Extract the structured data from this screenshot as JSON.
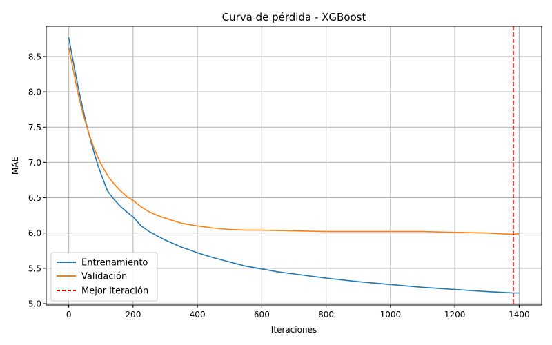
{
  "chart_data": {
    "type": "line",
    "title": "Curva de pérdida - XGBoost",
    "xlabel": "Iteraciones",
    "ylabel": "MAE",
    "xlim": [
      -70,
      1470
    ],
    "ylim": [
      4.98,
      8.93
    ],
    "xticks": [
      0,
      200,
      400,
      600,
      800,
      1000,
      1200,
      1400
    ],
    "yticks": [
      5.0,
      5.5,
      6.0,
      6.5,
      7.0,
      7.5,
      8.0,
      8.5
    ],
    "xtick_labels": [
      "0",
      "200",
      "400",
      "600",
      "800",
      "1000",
      "1200",
      "1400"
    ],
    "ytick_labels": [
      "5.0",
      "5.5",
      "6.0",
      "6.5",
      "7.0",
      "7.5",
      "8.0",
      "8.5"
    ],
    "grid": true,
    "legend_position": "lower-left",
    "series": [
      {
        "name": "Entrenamiento",
        "color": "#1f77b4",
        "x": [
          0,
          10,
          20,
          30,
          40,
          50,
          60,
          70,
          80,
          90,
          100,
          120,
          140,
          160,
          180,
          200,
          225,
          250,
          275,
          300,
          350,
          400,
          450,
          500,
          550,
          600,
          650,
          700,
          800,
          900,
          1000,
          1100,
          1200,
          1300,
          1382,
          1400
        ],
        "y": [
          8.77,
          8.52,
          8.28,
          8.05,
          7.84,
          7.64,
          7.45,
          7.28,
          7.12,
          6.97,
          6.84,
          6.6,
          6.48,
          6.38,
          6.3,
          6.23,
          6.1,
          6.02,
          5.96,
          5.9,
          5.8,
          5.72,
          5.65,
          5.59,
          5.53,
          5.49,
          5.45,
          5.42,
          5.36,
          5.31,
          5.27,
          5.23,
          5.2,
          5.17,
          5.15,
          5.15
        ]
      },
      {
        "name": "Validación",
        "color": "#ff7f0e",
        "x": [
          0,
          10,
          20,
          30,
          40,
          50,
          60,
          70,
          80,
          90,
          100,
          120,
          140,
          160,
          180,
          200,
          225,
          250,
          275,
          300,
          350,
          400,
          450,
          500,
          550,
          600,
          700,
          800,
          900,
          1000,
          1100,
          1200,
          1300,
          1382,
          1400
        ],
        "y": [
          8.63,
          8.4,
          8.17,
          7.96,
          7.76,
          7.6,
          7.45,
          7.31,
          7.19,
          7.08,
          6.98,
          6.82,
          6.7,
          6.6,
          6.52,
          6.46,
          6.37,
          6.3,
          6.25,
          6.21,
          6.14,
          6.1,
          6.07,
          6.05,
          6.04,
          6.04,
          6.03,
          6.02,
          6.02,
          6.02,
          6.02,
          6.01,
          6.0,
          5.98,
          5.99
        ]
      }
    ],
    "reference_lines": [
      {
        "name": "Mejor iteración",
        "orientation": "vertical",
        "x": 1382,
        "color": "#ff0000",
        "style": "dashed"
      }
    ]
  }
}
